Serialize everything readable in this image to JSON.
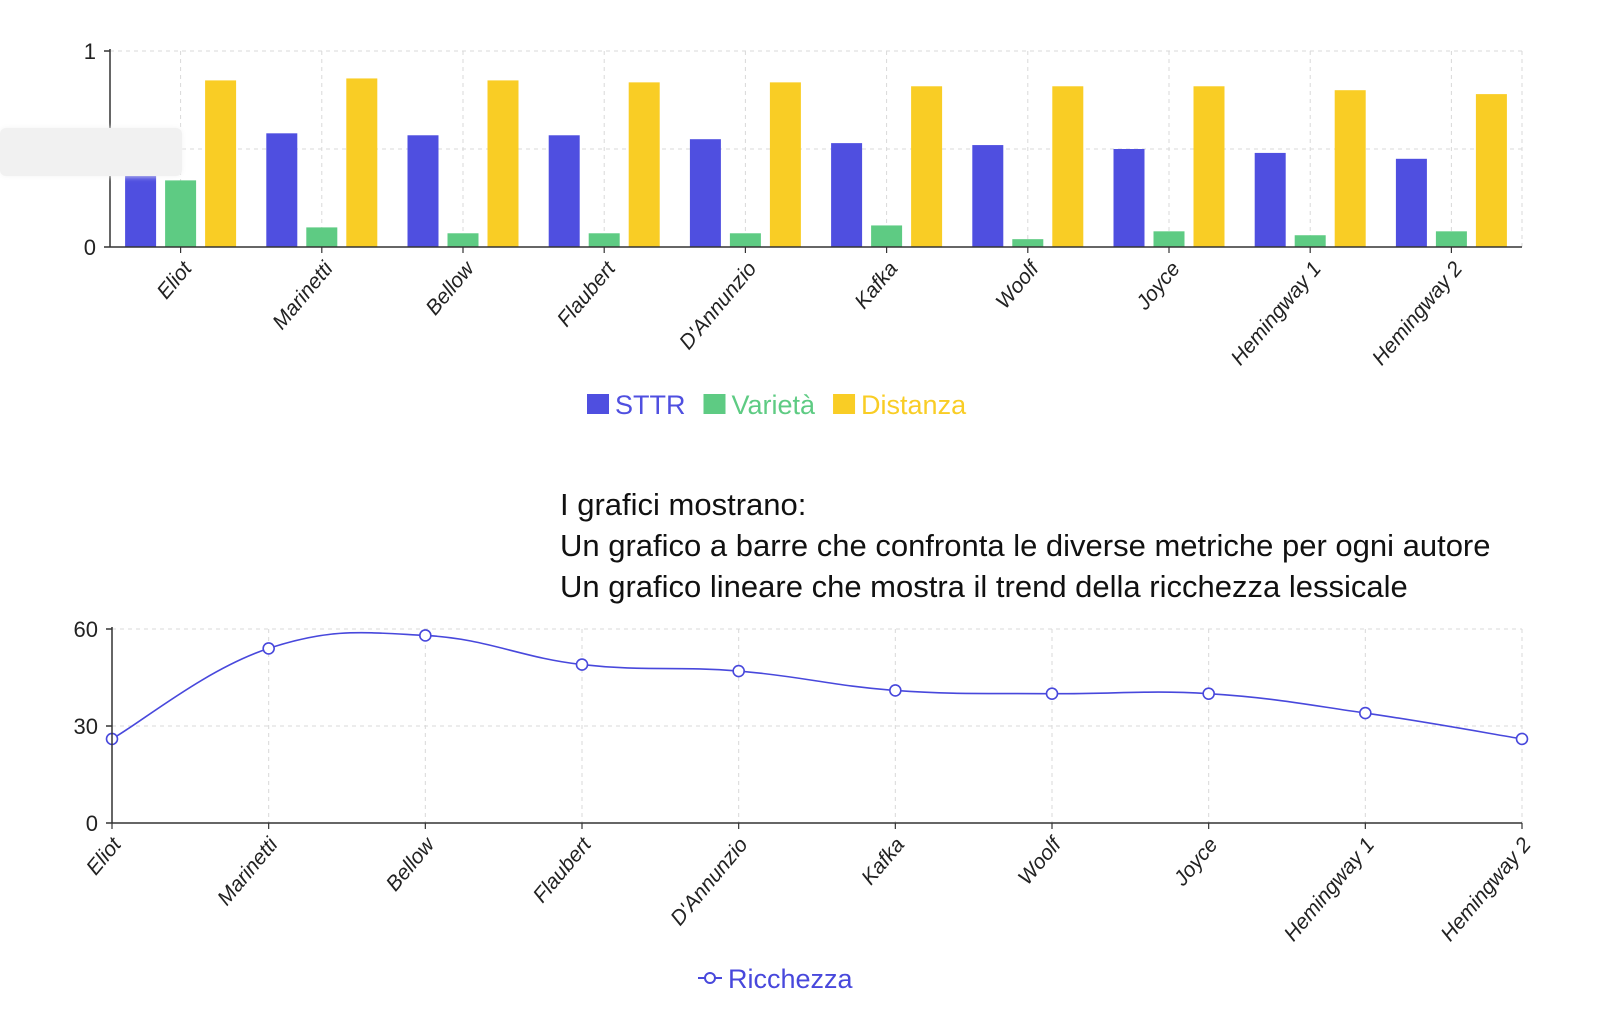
{
  "caption": {
    "line1": "I grafici mostrano:",
    "line2": "Un grafico a barre che confronta le diverse metriche per ogni autore",
    "line3": "Un grafico lineare che mostra il trend della ricchezza lessicale"
  },
  "colors": {
    "sttr": "#4f4fe0",
    "varieta": "#5ecb83",
    "distanza": "#f9cd25",
    "ricchezza": "#4848dc",
    "grid": "#d9d9d9",
    "axis": "#333333"
  },
  "chart_data": [
    {
      "type": "bar",
      "categories": [
        "Eliot",
        "Marinetti",
        "Bellow",
        "Flaubert",
        "D'Annunzio",
        "Kafka",
        "Woolf",
        "Joyce",
        "Hemingway 1",
        "Hemingway 2"
      ],
      "series": [
        {
          "name": "STTR",
          "values": [
            0.38,
            0.58,
            0.57,
            0.57,
            0.55,
            0.53,
            0.52,
            0.5,
            0.48,
            0.45
          ]
        },
        {
          "name": "Varietà",
          "values": [
            0.34,
            0.1,
            0.07,
            0.07,
            0.07,
            0.11,
            0.04,
            0.08,
            0.06,
            0.08
          ]
        },
        {
          "name": "Distanza",
          "values": [
            0.85,
            0.86,
            0.85,
            0.84,
            0.84,
            0.82,
            0.82,
            0.82,
            0.8,
            0.78
          ]
        }
      ],
      "yticks": [
        "0",
        "1"
      ],
      "ylim": [
        0,
        1
      ],
      "grid": true,
      "legend": "bottom-center",
      "title": "",
      "xlabel": "",
      "ylabel": ""
    },
    {
      "type": "line",
      "categories": [
        "Eliot",
        "Marinetti",
        "Bellow",
        "Flaubert",
        "D'Annunzio",
        "Kafka",
        "Woolf",
        "Joyce",
        "Hemingway 1",
        "Hemingway 2"
      ],
      "series": [
        {
          "name": "Ricchezza",
          "values": [
            26,
            54,
            58,
            49,
            47,
            41,
            40,
            40,
            34,
            26
          ]
        }
      ],
      "yticks": [
        "0",
        "30",
        "60"
      ],
      "ylim": [
        0,
        60
      ],
      "grid": true,
      "legend": "bottom-center",
      "title": "",
      "xlabel": "",
      "ylabel": ""
    }
  ]
}
